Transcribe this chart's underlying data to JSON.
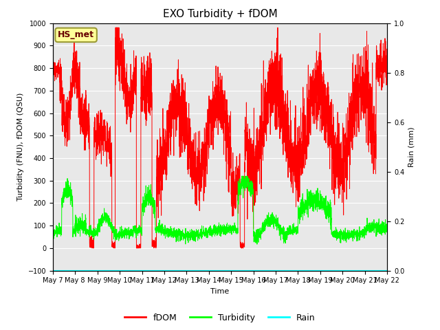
{
  "title": "EXO Turbidity + fDOM",
  "xlabel": "Time",
  "ylabel_left": "Turbidity (FNU), fDOM (QSU)",
  "ylabel_right": "Rain (mm)",
  "ylim_left": [
    -100,
    1000
  ],
  "ylim_right": [
    0.0,
    1.0
  ],
  "yticks_left": [
    -100,
    0,
    100,
    200,
    300,
    400,
    500,
    600,
    700,
    800,
    900,
    1000
  ],
  "yticks_right": [
    0.0,
    0.2,
    0.4,
    0.6,
    0.8,
    1.0
  ],
  "xtick_labels": [
    "May 7",
    "May 8",
    "May 9",
    "May 10",
    "May 11",
    "May 12",
    "May 13",
    "May 14",
    "May 15",
    "May 16",
    "May 17",
    "May 18",
    "May 19",
    "May 20",
    "May 21",
    "May 22"
  ],
  "fdom_color": "#ff0000",
  "turbidity_color": "#00ff00",
  "rain_color": "#00ffff",
  "background_color": "#e8e8e8",
  "annotation_text": "HS_met",
  "annotation_box_color": "#ffff99",
  "annotation_border_color": "#999933",
  "grid_color": "#ffffff",
  "title_fontsize": 11,
  "axis_label_fontsize": 8,
  "tick_fontsize": 7,
  "legend_fontsize": 9
}
